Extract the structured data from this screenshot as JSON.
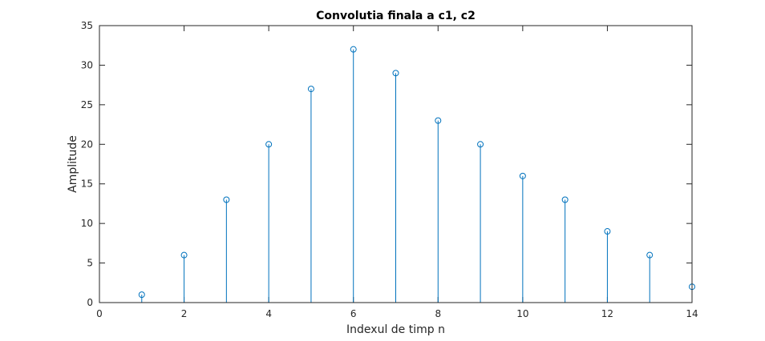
{
  "chart_data": {
    "type": "stem",
    "title": "Convolutia finala a c1, c2",
    "xlabel": "Indexul de timp n",
    "ylabel": "Amplitude",
    "xlim": [
      0,
      14
    ],
    "ylim": [
      0,
      35
    ],
    "xticks": [
      0,
      2,
      4,
      6,
      8,
      10,
      12,
      14
    ],
    "yticks": [
      0,
      5,
      10,
      15,
      20,
      25,
      30,
      35
    ],
    "grid": false,
    "series": [
      {
        "color": "#0072BD",
        "marker": "circle",
        "x": [
          1,
          2,
          3,
          4,
          5,
          6,
          7,
          8,
          9,
          10,
          11,
          12,
          13,
          14
        ],
        "y": [
          1,
          6,
          13,
          20,
          27,
          32,
          29,
          23,
          20,
          16,
          13,
          9,
          6,
          2
        ]
      }
    ]
  }
}
